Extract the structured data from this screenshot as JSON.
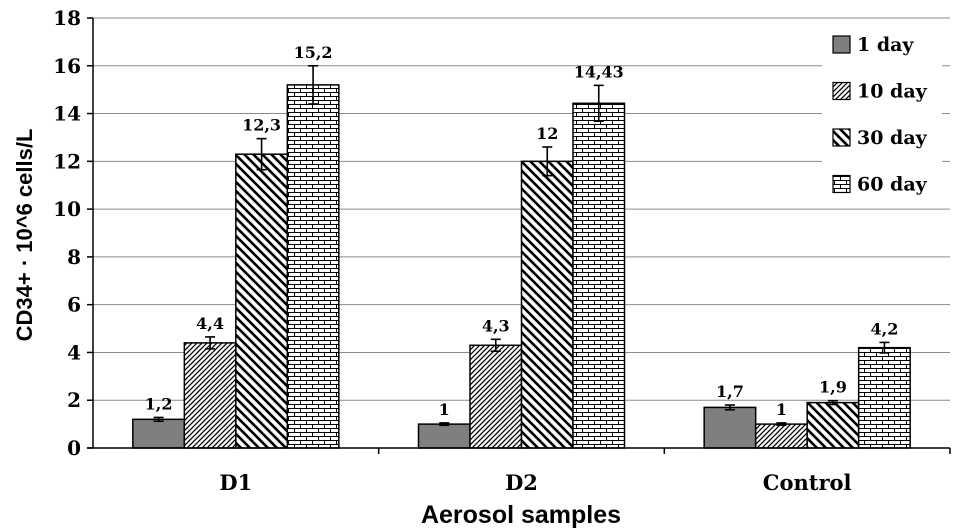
{
  "chart_data": {
    "type": "bar",
    "title": "",
    "xlabel": "Aerosol samples",
    "ylabel": "CD34+ · 10^6 cells/L",
    "categories": [
      "D1",
      "D2",
      "Control"
    ],
    "ylim": [
      0,
      18
    ],
    "yticks": [
      0,
      2,
      4,
      6,
      8,
      10,
      12,
      14,
      16,
      18
    ],
    "grid": true,
    "legend_position": "top-right",
    "series": [
      {
        "name": "1 day",
        "pattern": "solid-gray",
        "values": [
          1.2,
          1.0,
          1.7
        ],
        "labels": [
          "1,2",
          "1",
          "1,7"
        ],
        "errors": [
          0.08,
          0.05,
          0.1
        ]
      },
      {
        "name": "10 day",
        "pattern": "diagonal-dense",
        "values": [
          4.4,
          4.3,
          1.0
        ],
        "labels": [
          "4,4",
          "4,3",
          "1"
        ],
        "errors": [
          0.25,
          0.25,
          0.05
        ]
      },
      {
        "name": "30 day",
        "pattern": "diagonal-wide",
        "values": [
          12.3,
          12.0,
          1.9
        ],
        "labels": [
          "12,3",
          "12",
          "1,9"
        ],
        "errors": [
          0.65,
          0.6,
          0.08
        ]
      },
      {
        "name": "60 day",
        "pattern": "brick",
        "values": [
          15.2,
          14.43,
          4.2
        ],
        "labels": [
          "15,2",
          "14,43",
          "4,2"
        ],
        "errors": [
          0.8,
          0.75,
          0.22
        ]
      }
    ]
  }
}
